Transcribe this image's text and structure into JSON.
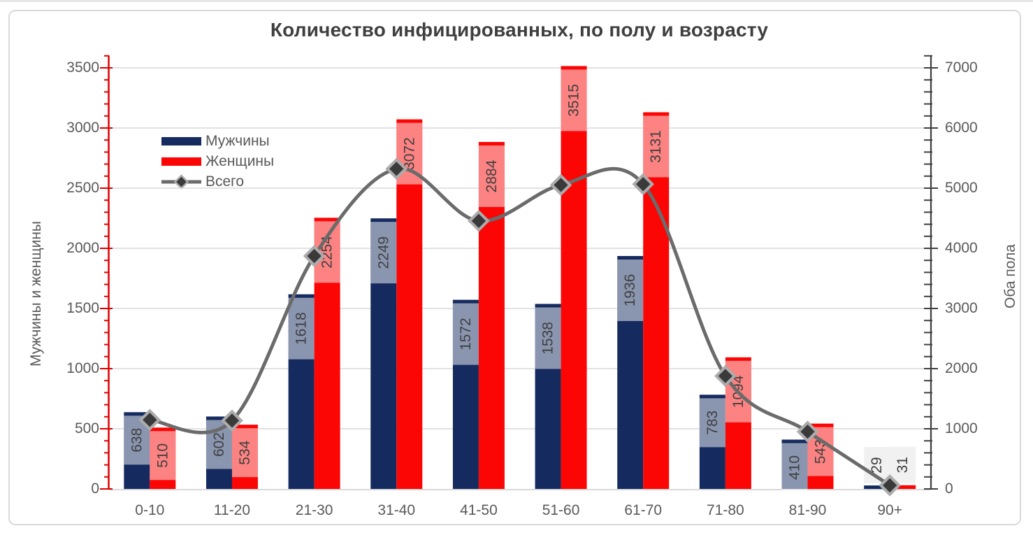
{
  "chart_data": {
    "type": "combo",
    "title": "Количество инфицированных, по полу и возрасту",
    "categories": [
      "0-10",
      "11-20",
      "21-30",
      "31-40",
      "41-50",
      "51-60",
      "61-70",
      "71-80",
      "81-90",
      "90+"
    ],
    "series": [
      {
        "name": "Мужчины",
        "type": "bar",
        "axis": "left",
        "color": "#152a5e",
        "values": [
          638,
          602,
          1618,
          2249,
          1572,
          1538,
          1936,
          783,
          410,
          29
        ]
      },
      {
        "name": "Женщины",
        "type": "bar",
        "axis": "left",
        "color": "#fb0505",
        "values": [
          510,
          534,
          2254,
          3072,
          2884,
          3515,
          3131,
          1094,
          543,
          31
        ]
      },
      {
        "name": "Всего",
        "type": "line",
        "axis": "right",
        "smooth": true,
        "color": "#6b6b6b",
        "marker": "diamond",
        "marker_fill": "#3a3a3a",
        "marker_border": "#acacac",
        "values": [
          1148,
          1136,
          3872,
          5321,
          4456,
          5053,
          5067,
          1877,
          953,
          60
        ]
      }
    ],
    "left_axis": {
      "title": "Мужчины и женщины",
      "min": 0,
      "max": 3500,
      "major": 500,
      "minor": 100,
      "tick_labels": [
        "0",
        "500",
        "1000",
        "1500",
        "2000",
        "2500",
        "3000",
        "3500"
      ],
      "color": "#e00000"
    },
    "right_axis": {
      "title": "Оба пола",
      "min": 0,
      "max": 7000,
      "major": 1000,
      "minor": 200,
      "tick_labels": [
        "0",
        "1000",
        "2000",
        "3000",
        "4000",
        "5000",
        "6000",
        "7000"
      ],
      "color": "#404040"
    },
    "grid": true,
    "gridline_color": "#d9d9d9",
    "axis_text_color": "#595959",
    "data_label_color": "#404040",
    "label_box_fill_inside": "rgba(255,255,255,0.5)",
    "label_box_fill_outside": "#f1f1f1",
    "legend_position": "inside-top-left",
    "frame_color": "#d9d9d9"
  }
}
